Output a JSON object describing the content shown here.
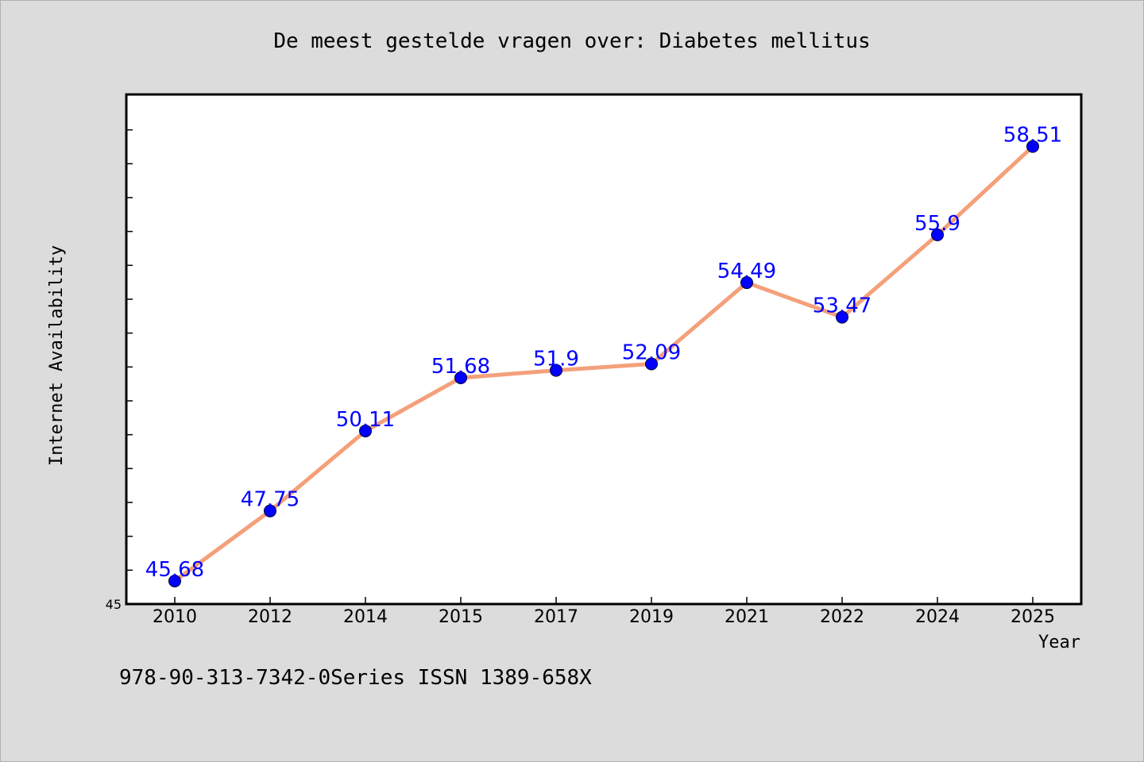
{
  "chart_data": {
    "type": "line",
    "title": "De meest gestelde vragen over: Diabetes mellitus",
    "xlabel": "Year",
    "ylabel": "Internet Availability",
    "categories": [
      "2010",
      "2012",
      "2014",
      "2015",
      "2017",
      "2019",
      "2021",
      "2022",
      "2024",
      "2025"
    ],
    "series": [
      {
        "values": [
          45.68,
          47.75,
          50.11,
          51.68,
          51.9,
          52.09,
          54.49,
          53.47,
          55.9,
          58.51
        ],
        "labels": [
          "45.68",
          "47.75",
          "50.11",
          "51.68",
          "51.9",
          "52.09",
          "54.49",
          "53.47",
          "55.9",
          "58.51"
        ],
        "line_color": "#f4a07a",
        "marker_color": "#0000ff",
        "label_color": "#0000ff"
      }
    ],
    "ylim": [
      45,
      60
    ],
    "ytick_labels": [
      "45"
    ],
    "grid": false,
    "legend": "none"
  },
  "footer": {
    "text": "978-90-313-7342-0Series ISSN 1389-658X"
  },
  "colors": {
    "background": "#dcdcdc",
    "plot_background": "#ffffff",
    "axis": "#000000"
  }
}
